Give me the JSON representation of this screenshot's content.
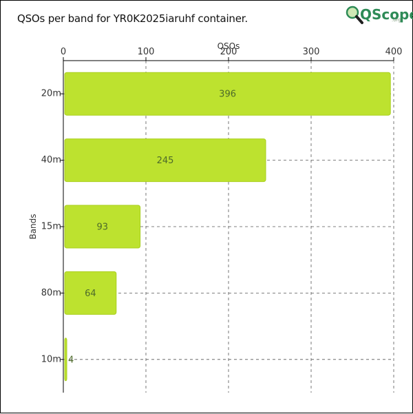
{
  "page": {
    "title": "QSOs per band for YR0K2025iaruhf container.",
    "logo_word": "QScope",
    "logo_org": ".org"
  },
  "colors": {
    "bar": "#bde22f",
    "bar_stroke": "#a9cf1c",
    "grid": "#555555",
    "logo_green": "#2e8b57"
  },
  "icons": {
    "logo": "magnifier-logo-icon"
  },
  "chart_data": {
    "type": "bar",
    "orientation": "horizontal",
    "title": "QSOs per band for YR0K2025iaruhf container.",
    "xlabel": "QSOs",
    "ylabel": "Bands",
    "xlim": [
      0,
      400
    ],
    "xticks": [
      0,
      100,
      200,
      300,
      400
    ],
    "x_axis_position": "top",
    "grid": true,
    "categories": [
      "20m",
      "40m",
      "15m",
      "80m",
      "10m"
    ],
    "values": [
      396,
      245,
      93,
      64,
      4
    ]
  }
}
